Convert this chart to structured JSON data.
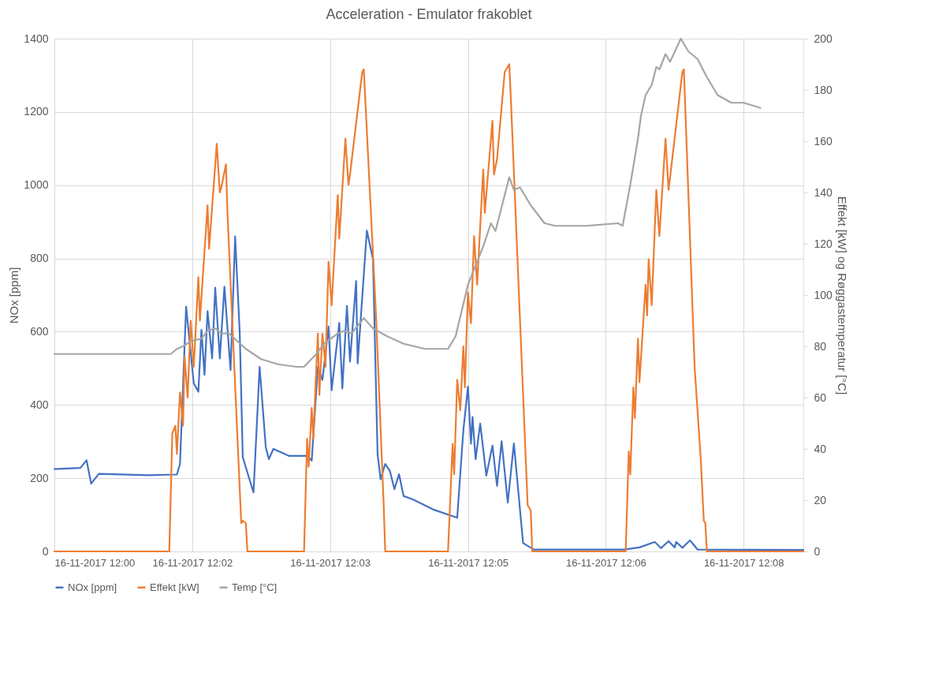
{
  "chart_data": {
    "type": "line",
    "title": "Acceleration - Emulator frakoblet",
    "ylabel": "NOx [ppm]",
    "y2label": "Effekt [kW] og Røggastemperatur [°C]",
    "xlim": [
      "2017-11-16T12:00:30",
      "2017-11-16T12:08:39"
    ],
    "xticks": [
      {
        "value": "2017-11-16T12:00:30",
        "label": "16-11-2017 12:00"
      },
      {
        "value": "2017-11-16T12:02:00",
        "label": "16-11-2017 12:02"
      },
      {
        "value": "2017-11-16T12:03:30",
        "label": "16-11-2017 12:03"
      },
      {
        "value": "2017-11-16T12:05:00",
        "label": "16-11-2017 12:05"
      },
      {
        "value": "2017-11-16T12:06:30",
        "label": "16-11-2017 12:06"
      },
      {
        "value": "2017-11-16T12:08:00",
        "label": "16-11-2017 12:08"
      }
    ],
    "ylim": [
      0,
      1400
    ],
    "yticks": [
      0,
      200,
      400,
      600,
      800,
      1000,
      1200,
      1400
    ],
    "y2lim": [
      0,
      200
    ],
    "y2ticks": [
      0,
      20,
      40,
      60,
      80,
      100,
      120,
      140,
      160,
      180,
      200
    ],
    "grid": true,
    "legend": "bottom",
    "series": [
      {
        "name": "NOx [ppm]",
        "color": "#4472c4",
        "x": [
          "2017-11-16T12:00:30",
          "2017-11-16T12:00:47",
          "2017-11-16T12:00:51",
          "2017-11-16T12:00:54",
          "2017-11-16T12:00:59",
          "2017-11-16T12:01:31",
          "2017-11-16T12:01:50",
          "2017-11-16T12:01:52",
          "2017-11-16T12:01:56",
          "2017-11-16T12:02:01",
          "2017-11-16T12:02:04",
          "2017-11-16T12:02:06",
          "2017-11-16T12:02:08",
          "2017-11-16T12:02:10",
          "2017-11-16T12:02:13",
          "2017-11-16T12:02:15",
          "2017-11-16T12:02:18",
          "2017-11-16T12:02:21",
          "2017-11-16T12:02:25",
          "2017-11-16T12:02:28",
          "2017-11-16T12:02:31",
          "2017-11-16T12:02:33",
          "2017-11-16T12:02:37",
          "2017-11-16T12:02:40",
          "2017-11-16T12:02:44",
          "2017-11-16T12:02:48",
          "2017-11-16T12:02:50",
          "2017-11-16T12:02:53",
          "2017-11-16T12:03:03",
          "2017-11-16T12:03:15",
          "2017-11-16T12:03:18",
          "2017-11-16T12:03:22",
          "2017-11-16T12:03:25",
          "2017-11-16T12:03:29",
          "2017-11-16T12:03:31",
          "2017-11-16T12:03:36",
          "2017-11-16T12:03:38",
          "2017-11-16T12:03:41",
          "2017-11-16T12:03:43",
          "2017-11-16T12:03:47",
          "2017-11-16T12:03:48",
          "2017-11-16T12:03:54",
          "2017-11-16T12:03:58",
          "2017-11-16T12:04:01",
          "2017-11-16T12:04:03",
          "2017-11-16T12:04:06",
          "2017-11-16T12:04:09",
          "2017-11-16T12:04:12",
          "2017-11-16T12:04:15",
          "2017-11-16T12:04:18",
          "2017-11-16T12:04:24",
          "2017-11-16T12:04:37",
          "2017-11-16T12:04:48",
          "2017-11-16T12:04:53",
          "2017-11-16T12:04:57",
          "2017-11-16T12:05:00",
          "2017-11-16T12:05:02",
          "2017-11-16T12:05:03",
          "2017-11-16T12:05:05",
          "2017-11-16T12:05:08",
          "2017-11-16T12:05:12",
          "2017-11-16T12:05:16",
          "2017-11-16T12:05:19",
          "2017-11-16T12:05:22",
          "2017-11-16T12:05:26",
          "2017-11-16T12:05:30",
          "2017-11-16T12:05:36",
          "2017-11-16T12:05:43",
          "2017-11-16T12:06:42",
          "2017-11-16T12:06:52",
          "2017-11-16T12:07:02",
          "2017-11-16T12:07:06",
          "2017-11-16T12:07:11",
          "2017-11-16T12:07:15",
          "2017-11-16T12:07:16",
          "2017-11-16T12:07:20",
          "2017-11-16T12:07:25",
          "2017-11-16T12:07:30",
          "2017-11-16T12:08:39"
        ],
        "values": [
          225,
          228,
          249,
          185,
          212,
          208,
          210,
          239,
          668,
          459,
          436,
          605,
          482,
          656,
          527,
          720,
          527,
          723,
          495,
          860,
          597,
          257,
          202,
          161,
          504,
          285,
          252,
          280,
          261,
          261,
          248,
          504,
          468,
          614,
          440,
          624,
          445,
          670,
          518,
          738,
          513,
          876,
          798,
          266,
          197,
          239,
          220,
          170,
          211,
          151,
          142,
          115,
          99,
          92,
          330,
          450,
          294,
          367,
          252,
          349,
          207,
          289,
          179,
          301,
          133,
          295,
          23,
          5,
          5,
          11,
          26,
          9,
          28,
          11,
          26,
          10,
          30,
          5,
          4
        ]
      },
      {
        "name": "Effekt [kW]",
        "color": "#ed7d31",
        "axis": "y2",
        "x": [
          "2017-11-16T12:00:30",
          "2017-11-16T12:01:45",
          "2017-11-16T12:01:47",
          "2017-11-16T12:01:49",
          "2017-11-16T12:01:50",
          "2017-11-16T12:01:52",
          "2017-11-16T12:01:54",
          "2017-11-16T12:01:55",
          "2017-11-16T12:01:57",
          "2017-11-16T12:01:59",
          "2017-11-16T12:02:01",
          "2017-11-16T12:02:04",
          "2017-11-16T12:02:05",
          "2017-11-16T12:02:10",
          "2017-11-16T12:02:11",
          "2017-11-16T12:02:16",
          "2017-11-16T12:02:18",
          "2017-11-16T12:02:19",
          "2017-11-16T12:02:22",
          "2017-11-16T12:02:23",
          "2017-11-16T12:02:32",
          "2017-11-16T12:02:33",
          "2017-11-16T12:02:35",
          "2017-11-16T12:02:36",
          "2017-11-16T12:03:13",
          "2017-11-16T12:03:15",
          "2017-11-16T12:03:16",
          "2017-11-16T12:03:18",
          "2017-11-16T12:03:19",
          "2017-11-16T12:03:22",
          "2017-11-16T12:03:23",
          "2017-11-16T12:03:25",
          "2017-11-16T12:03:27",
          "2017-11-16T12:03:29",
          "2017-11-16T12:03:31",
          "2017-11-16T12:03:35",
          "2017-11-16T12:03:36",
          "2017-11-16T12:03:40",
          "2017-11-16T12:03:42",
          "2017-11-16T12:03:43",
          "2017-11-16T12:03:51",
          "2017-11-16T12:03:52",
          "2017-11-16T12:04:00",
          "2017-11-16T12:04:05",
          "2017-11-16T12:04:06",
          "2017-11-16T12:04:47",
          "2017-11-16T12:04:50",
          "2017-11-16T12:04:51",
          "2017-11-16T12:04:53",
          "2017-11-16T12:04:55",
          "2017-11-16T12:04:57",
          "2017-11-16T12:04:58",
          "2017-11-16T12:05:00",
          "2017-11-16T12:05:02",
          "2017-11-16T12:05:04",
          "2017-11-16T12:05:06",
          "2017-11-16T12:05:10",
          "2017-11-16T12:05:11",
          "2017-11-16T12:05:16",
          "2017-11-16T12:05:17",
          "2017-11-16T12:05:19",
          "2017-11-16T12:05:24",
          "2017-11-16T12:05:27",
          "2017-11-16T12:05:28",
          "2017-11-16T12:05:39",
          "2017-11-16T12:05:41",
          "2017-11-16T12:05:42",
          "2017-11-16T12:06:43",
          "2017-11-16T12:06:45",
          "2017-11-16T12:06:46",
          "2017-11-16T12:06:48",
          "2017-11-16T12:06:49",
          "2017-11-16T12:06:51",
          "2017-11-16T12:06:52",
          "2017-11-16T12:06:56",
          "2017-11-16T12:06:57",
          "2017-11-16T12:06:58",
          "2017-11-16T12:07:00",
          "2017-11-16T12:07:03",
          "2017-11-16T12:07:05",
          "2017-11-16T12:07:09",
          "2017-11-16T12:07:11",
          "2017-11-16T12:07:12",
          "2017-11-16T12:07:20",
          "2017-11-16T12:07:21",
          "2017-11-16T12:07:28",
          "2017-11-16T12:07:32",
          "2017-11-16T12:07:34",
          "2017-11-16T12:07:35",
          "2017-11-16T12:07:36",
          "2017-11-16T12:08:39"
        ],
        "values": [
          0,
          0,
          46,
          49,
          38,
          62,
          49,
          76,
          60,
          90,
          72,
          107,
          90,
          135,
          118,
          159,
          140,
          142,
          151,
          132,
          11,
          12,
          11,
          0,
          0,
          44,
          33,
          56,
          44,
          85,
          61,
          85,
          72,
          113,
          96,
          139,
          122,
          161,
          143,
          147,
          187,
          188,
          92,
          18,
          0,
          0,
          42,
          30,
          67,
          55,
          80,
          64,
          101,
          89,
          123,
          104,
          149,
          132,
          168,
          147,
          153,
          187,
          190,
          177,
          18,
          16,
          0,
          0,
          39,
          30,
          64,
          52,
          83,
          66,
          104,
          92,
          114,
          96,
          141,
          123,
          161,
          141,
          146,
          187,
          188,
          72,
          36,
          12,
          11,
          0,
          0
        ]
      },
      {
        "name": "Temp [°C]",
        "color": "#a5a5a5",
        "axis": "y2",
        "x": [
          "2017-11-16T12:00:30",
          "2017-11-16T12:01:43",
          "2017-11-16T12:01:46",
          "2017-11-16T12:01:50",
          "2017-11-16T12:01:54",
          "2017-11-16T12:01:59",
          "2017-11-16T12:02:06",
          "2017-11-16T12:02:10",
          "2017-11-16T12:02:15",
          "2017-11-16T12:02:19",
          "2017-11-16T12:02:24",
          "2017-11-16T12:02:35",
          "2017-11-16T12:02:45",
          "2017-11-16T12:02:56",
          "2017-11-16T12:03:08",
          "2017-11-16T12:03:13",
          "2017-11-16T12:03:21",
          "2017-11-16T12:03:26",
          "2017-11-16T12:03:35",
          "2017-11-16T12:03:39",
          "2017-11-16T12:03:44",
          "2017-11-16T12:03:52",
          "2017-11-16T12:03:58",
          "2017-11-16T12:04:07",
          "2017-11-16T12:04:18",
          "2017-11-16T12:04:32",
          "2017-11-16T12:04:47",
          "2017-11-16T12:04:52",
          "2017-11-16T12:04:56",
          "2017-11-16T12:05:00",
          "2017-11-16T12:05:04",
          "2017-11-16T12:05:10",
          "2017-11-16T12:05:15",
          "2017-11-16T12:05:18",
          "2017-11-16T12:05:27",
          "2017-11-16T12:05:30",
          "2017-11-16T12:05:34",
          "2017-11-16T12:05:41",
          "2017-11-16T12:05:50",
          "2017-11-16T12:05:57",
          "2017-11-16T12:06:17",
          "2017-11-16T12:06:38",
          "2017-11-16T12:06:41",
          "2017-11-16T12:06:46",
          "2017-11-16T12:06:51",
          "2017-11-16T12:06:53",
          "2017-11-16T12:06:56",
          "2017-11-16T12:07:00",
          "2017-11-16T12:07:03",
          "2017-11-16T12:07:05",
          "2017-11-16T12:07:09",
          "2017-11-16T12:07:12",
          "2017-11-16T12:07:19",
          "2017-11-16T12:07:24",
          "2017-11-16T12:07:30",
          "2017-11-16T12:07:36",
          "2017-11-16T12:07:43",
          "2017-11-16T12:07:52",
          "2017-11-16T12:08:00",
          "2017-11-16T12:08:11"
        ],
        "values": [
          77,
          77,
          77,
          79,
          80,
          82,
          83,
          86,
          87,
          85,
          85,
          79,
          75,
          73,
          72,
          72,
          77,
          81,
          85,
          86,
          85,
          91,
          87,
          84,
          81,
          79,
          79,
          84,
          94,
          104,
          110,
          119,
          128,
          125,
          146,
          141,
          142,
          135,
          128,
          127,
          127,
          128,
          127,
          143,
          161,
          170,
          178,
          182,
          189,
          188,
          194,
          191,
          200,
          195,
          192,
          185,
          178,
          175,
          175,
          173
        ]
      }
    ]
  }
}
